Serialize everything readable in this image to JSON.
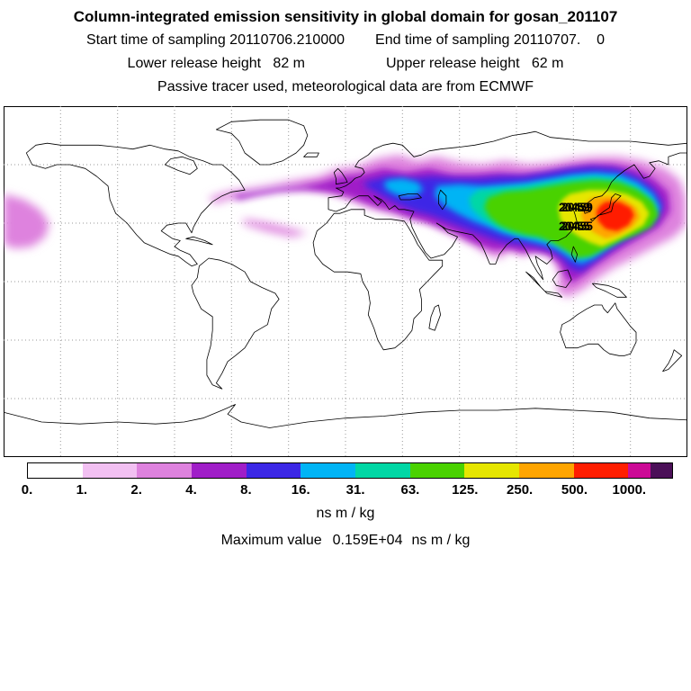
{
  "header": {
    "title": "Column-integrated emission sensitivity in global domain for gosan_201107",
    "start_time_label": "Start time of sampling 20110706.210000",
    "end_time_label": "End time of sampling 20110707.    0",
    "lower_release_label": "Lower release height   82 m",
    "upper_release_label": "Upper release height   62 m",
    "tracer_note": "Passive tracer used, meteorological data are from ECMWF"
  },
  "map": {
    "station_labels": [
      "20459",
      "20455"
    ],
    "grid_interval_deg": 30
  },
  "colorbar": {
    "ticks": [
      "0.",
      "1.",
      "2.",
      "4.",
      "8.",
      "16.",
      "31.",
      "63.",
      "125.",
      "250.",
      "500.",
      "1000."
    ],
    "interval_colors": [
      "#ffffff",
      "#f2c0f2",
      "#de82de",
      "#a01ec8",
      "#3c28e6",
      "#00b4f5",
      "#00d7a5",
      "#4ad200",
      "#e6e600",
      "#ffa500",
      "#ff1e00"
    ],
    "overflow_colors": [
      "#cc0a96",
      "#4b1058"
    ],
    "units": "ns m / kg"
  },
  "footer": {
    "maximum_label": "Maximum value",
    "maximum_value": "0.159E+04",
    "maximum_units": "ns m / kg"
  },
  "chart_data": {
    "type": "heatmap",
    "title": "Column-integrated emission sensitivity in global domain for gosan_201107",
    "station": "gosan_201107",
    "sampling_start": "20110706.210000",
    "sampling_end": "20110707.    0",
    "lower_release_height_m": 82,
    "upper_release_height_m": 62,
    "tracer": "Passive tracer",
    "meteorology": "ECMWF",
    "units": "ns m / kg",
    "maximum_value": "0.159E+04",
    "contour_levels": [
      0,
      1,
      2,
      4,
      8,
      16,
      31,
      63,
      125,
      250,
      500,
      1000
    ],
    "level_colors": [
      "#ffffff",
      "#f2c0f2",
      "#de82de",
      "#a01ec8",
      "#3c28e6",
      "#00b4f5",
      "#00d7a5",
      "#4ad200",
      "#e6e600",
      "#ffa500",
      "#ff1e00"
    ],
    "overflow_colors": [
      "#cc0a96",
      "#4b1058"
    ],
    "projection": {
      "type": "equirectangular",
      "lon_range": [
        -180,
        180
      ],
      "lat_range": [
        -90,
        90
      ],
      "gridline_spacing_deg": 30
    },
    "hotspot": {
      "lon": 140,
      "lat": 34,
      "note": "peak column sensitivity over East Asia near Korea/Japan"
    },
    "plume_extent_note": "High-sensitivity plume centered over East Asia, spreading west across central Asia, the Middle East and Europe into the North Atlantic, with branches into Southeast Asia and eastward across the Pacific date line"
  }
}
